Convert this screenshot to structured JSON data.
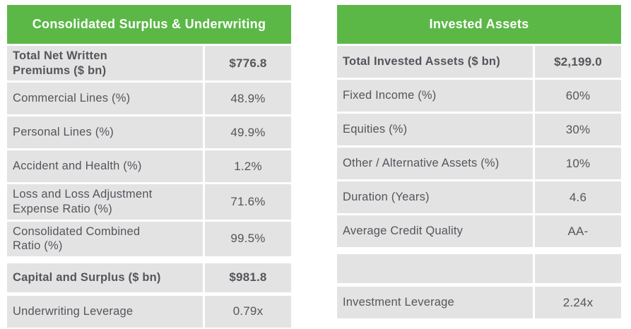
{
  "tables": [
    {
      "title": "Consolidated Surplus & Underwriting",
      "rows": [
        {
          "label": "Total Net Written\nPremiums ($ bn)",
          "value": "$776.8"
        },
        {
          "label": "Commercial Lines (%)",
          "value": "48.9%"
        },
        {
          "label": "Personal Lines (%)",
          "value": "49.9%"
        },
        {
          "label": "Accident and Health (%)",
          "value": "1.2%"
        },
        {
          "label": "Loss and Loss Adjustment\nExpense Ratio (%)",
          "value": "71.6%"
        },
        {
          "label": "Consolidated Combined\nRatio (%)",
          "value": "99.5%"
        },
        {
          "label": "Capital and Surplus ($ bn)",
          "value": "$981.8"
        },
        {
          "label": "Underwriting Leverage",
          "value": "0.79x"
        }
      ]
    },
    {
      "title": "Invested Assets",
      "rows": [
        {
          "label": "Total Invested Assets ($ bn)",
          "value": "$2,199.0"
        },
        {
          "label": "Fixed Income (%)",
          "value": "60%"
        },
        {
          "label": "Equities (%)",
          "value": "30%"
        },
        {
          "label": "Other / Alternative Assets (%)",
          "value": "10%"
        },
        {
          "label": "Duration (Years)",
          "value": "4.6"
        },
        {
          "label": "Average Credit Quality",
          "value": "AA-"
        },
        {
          "label": "",
          "value": ""
        },
        {
          "label": "Investment Leverage",
          "value": "2.24x"
        }
      ]
    }
  ],
  "colors": {
    "header_green": "#5bb847",
    "cell_gray": "#e3e3e4",
    "text_gray": "#54565a",
    "header_text": "#ffffff"
  },
  "chart_data": [
    {
      "type": "table",
      "title": "Consolidated Surplus & Underwriting",
      "columns": [
        "Metric",
        "Value"
      ],
      "rows": [
        [
          "Total Net Written Premiums ($ bn)",
          "$776.8"
        ],
        [
          "Commercial Lines (%)",
          "48.9%"
        ],
        [
          "Personal Lines (%)",
          "49.9%"
        ],
        [
          "Accident and Health (%)",
          "1.2%"
        ],
        [
          "Loss and Loss Adjustment Expense Ratio (%)",
          "71.6%"
        ],
        [
          "Consolidated Combined Ratio (%)",
          "99.5%"
        ],
        [
          "Capital and Surplus ($ bn)",
          "$981.8"
        ],
        [
          "Underwriting Leverage",
          "0.79x"
        ]
      ]
    },
    {
      "type": "table",
      "title": "Invested Assets",
      "columns": [
        "Metric",
        "Value"
      ],
      "rows": [
        [
          "Total Invested Assets ($ bn)",
          "$2,199.0"
        ],
        [
          "Fixed Income (%)",
          "60%"
        ],
        [
          "Equities (%)",
          "30%"
        ],
        [
          "Other / Alternative Assets (%)",
          "10%"
        ],
        [
          "Duration (Years)",
          "4.6"
        ],
        [
          "Average Credit Quality",
          "AA-"
        ],
        [
          "Investment Leverage",
          "2.24x"
        ]
      ]
    }
  ]
}
